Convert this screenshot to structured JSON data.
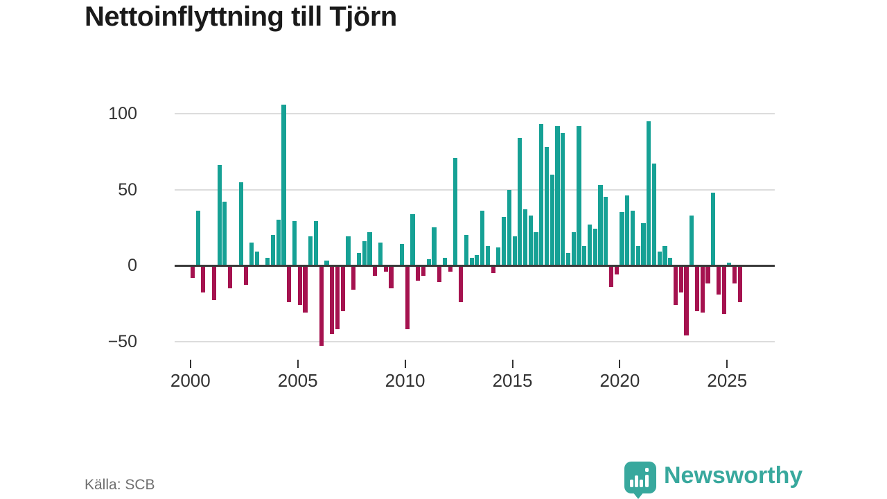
{
  "title": "Nettoinflyttning till Tjörn",
  "source": "Källa: SCB",
  "brand": {
    "name": "Newsworthy",
    "color": "#38a89d"
  },
  "colors": {
    "positive": "#16a195",
    "negative": "#a5124f",
    "grid": "#dcdcdc",
    "zero_axis": "#3a3a3a",
    "tick_text": "#333333",
    "title_text": "#1a1a1a",
    "source_text": "#6e6e6e"
  },
  "chart_data": {
    "type": "bar",
    "title": "Nettoinflyttning till Tjörn",
    "xlabel": "",
    "ylabel": "",
    "frequency": "quarterly",
    "period": "2000 Q1 – 2025 Q3",
    "x_ticks": [
      "2000",
      "2005",
      "2010",
      "2015",
      "2020",
      "2025"
    ],
    "y_ticks": [
      100,
      50,
      0,
      -50
    ],
    "ylim": [
      -60,
      112
    ],
    "grid": true,
    "legend": false,
    "quarters": [
      {
        "year": 2000,
        "q": [
          -8,
          36,
          -18,
          0
        ]
      },
      {
        "year": 2001,
        "q": [
          -23,
          66,
          42,
          -15
        ]
      },
      {
        "year": 2002,
        "q": [
          0,
          55,
          -13,
          15
        ]
      },
      {
        "year": 2003,
        "q": [
          9,
          0,
          5,
          20
        ]
      },
      {
        "year": 2004,
        "q": [
          30,
          106,
          -24,
          29
        ]
      },
      {
        "year": 2005,
        "q": [
          -26,
          -31,
          19,
          29
        ]
      },
      {
        "year": 2006,
        "q": [
          -53,
          3,
          -45,
          -42
        ]
      },
      {
        "year": 2007,
        "q": [
          -30,
          19,
          -16,
          8
        ]
      },
      {
        "year": 2008,
        "q": [
          16,
          22,
          -7,
          15
        ]
      },
      {
        "year": 2009,
        "q": [
          -4,
          -15,
          0,
          14
        ]
      },
      {
        "year": 2010,
        "q": [
          -42,
          34,
          -10,
          -7
        ]
      },
      {
        "year": 2011,
        "q": [
          4,
          25,
          -11,
          5
        ]
      },
      {
        "year": 2012,
        "q": [
          -4,
          71,
          -24,
          20
        ]
      },
      {
        "year": 2013,
        "q": [
          5,
          7,
          36,
          13
        ]
      },
      {
        "year": 2014,
        "q": [
          -5,
          12,
          32,
          50
        ]
      },
      {
        "year": 2015,
        "q": [
          19,
          84,
          37,
          33
        ]
      },
      {
        "year": 2016,
        "q": [
          22,
          93,
          78,
          60
        ]
      },
      {
        "year": 2017,
        "q": [
          92,
          87,
          8,
          22
        ]
      },
      {
        "year": 2018,
        "q": [
          92,
          13,
          27,
          24
        ]
      },
      {
        "year": 2019,
        "q": [
          53,
          45,
          -14,
          -6
        ]
      },
      {
        "year": 2020,
        "q": [
          35,
          46,
          36,
          13
        ]
      },
      {
        "year": 2021,
        "q": [
          28,
          95,
          67,
          9
        ]
      },
      {
        "year": 2022,
        "q": [
          13,
          5,
          -26,
          -18
        ]
      },
      {
        "year": 2023,
        "q": [
          -46,
          33,
          -30,
          -31
        ]
      },
      {
        "year": 2024,
        "q": [
          -12,
          48,
          -19,
          -32
        ]
      },
      {
        "year": 2025,
        "q": [
          2,
          -12,
          -24
        ]
      }
    ]
  }
}
